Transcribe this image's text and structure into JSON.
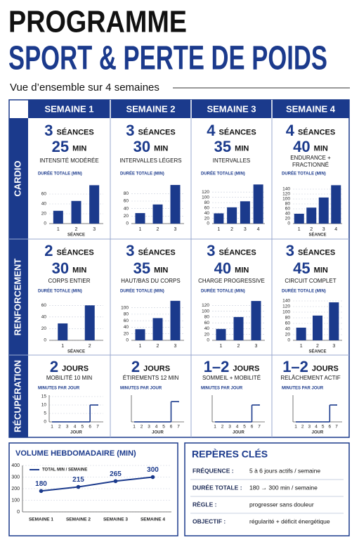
{
  "header": {
    "title": "PROGRAMME",
    "subtitle": "SPORT & PERTE DE POIDS",
    "tagline": "Vue d’ensemble sur 4 semaines"
  },
  "table": {
    "weeks": [
      "SEMAINE 1",
      "SEMAINE 2",
      "SEMAINE 3",
      "SEMAINE 4"
    ],
    "rows": [
      {
        "label": "CARDIO",
        "cells": [
          {
            "count": 3,
            "count_unit": "SÉANCES",
            "duration": 25,
            "duration_unit": "MIN",
            "note": "INTENSITÉ MODÉRÉE",
            "chart": {
              "type": "bar",
              "title": "DURÉE TOTALE (MIN)",
              "categories": [
                "1",
                "2",
                "3"
              ],
              "x_label": "SÉANCE",
              "values": [
                26,
                46,
                78
              ],
              "ylim": [
                0,
                80
              ],
              "yticks": [
                0,
                20,
                40,
                60
              ]
            }
          },
          {
            "count": 3,
            "count_unit": "SÉANCES",
            "duration": 30,
            "duration_unit": "MIN",
            "note": "INTERVALLES LÉGERS",
            "chart": {
              "type": "bar",
              "title": "DURÉE TOTALE (MIN)",
              "categories": [
                "1",
                "2",
                "3"
              ],
              "values": [
                28,
                51,
                103
              ],
              "ylim": [
                0,
                105
              ],
              "yticks": [
                0,
                20,
                40,
                60,
                80
              ]
            }
          },
          {
            "count": 4,
            "count_unit": "SÉANCES",
            "duration": 35,
            "duration_unit": "MIN",
            "note": "INTERVALLES",
            "chart": {
              "type": "bar",
              "title": "DURÉE TOTALE (MIN)",
              "categories": [
                "1",
                "2",
                "3",
                "4"
              ],
              "values": [
                39,
                62,
                85,
                149
              ],
              "ylim": [
                0,
                150
              ],
              "yticks": [
                0,
                20,
                40,
                60,
                80,
                100,
                120
              ]
            }
          },
          {
            "count": 4,
            "count_unit": "SÉANCES",
            "duration": 40,
            "duration_unit": "MIN",
            "note": [
              "ENDURANCE +",
              "FRACTIONNÉ"
            ],
            "chart": {
              "type": "bar",
              "title": "DURÉE TOTALE (MIN)",
              "categories": [
                "1",
                "2",
                "3",
                "4"
              ],
              "x_label": "SÉANCE",
              "values": [
                40,
                65,
                106,
                156
              ],
              "ylim": [
                0,
                160
              ],
              "yticks": [
                0,
                20,
                40,
                60,
                80,
                100,
                120,
                140
              ]
            }
          }
        ]
      },
      {
        "label": "RENFORCEMENT",
        "cells": [
          {
            "count": 2,
            "count_unit": "SÉANCES",
            "duration": 30,
            "duration_unit": "MIN",
            "note": "CORPS ENTIER",
            "chart": {
              "type": "bar",
              "title": "DURÉE TOTALE (MIN)",
              "categories": [
                "1",
                "2"
              ],
              "x_label": "SÉANCE",
              "values": [
                29,
                60
              ],
              "ylim": [
                0,
                70
              ],
              "yticks": [
                0,
                20,
                40,
                60
              ]
            }
          },
          {
            "count": 3,
            "count_unit": "SÉANCES",
            "duration": 35,
            "duration_unit": "MIN",
            "note": "HAUT/BAS DU CORPS",
            "chart": {
              "type": "bar",
              "title": "DURÉE TOTALE (MIN)",
              "categories": [
                "1",
                "2",
                "3"
              ],
              "values": [
                34,
                68,
                121
              ],
              "ylim": [
                0,
                125
              ],
              "yticks": [
                0,
                20,
                40,
                60,
                80,
                100
              ]
            }
          },
          {
            "count": 3,
            "count_unit": "SÉANCES",
            "duration": 40,
            "duration_unit": "MIN",
            "note": "CHARGE PROGRESSIVE",
            "chart": {
              "type": "bar",
              "title": "DURÉE TOTALE (MIN)",
              "categories": [
                "1",
                "2",
                "3"
              ],
              "values": [
                39,
                80,
                135
              ],
              "ylim": [
                0,
                140
              ],
              "yticks": [
                0,
                20,
                40,
                60,
                80,
                100,
                120
              ]
            }
          },
          {
            "count": 3,
            "count_unit": "SÉANCES",
            "duration": 45,
            "duration_unit": "MIN",
            "note": "CIRCUIT COMPLET",
            "chart": {
              "type": "bar",
              "title": "DURÉE TOTALE (MIN)",
              "categories": [
                "1",
                "2",
                "3"
              ],
              "x_label": "SÉANCE",
              "values": [
                45,
                88,
                135
              ],
              "ylim": [
                0,
                145
              ],
              "yticks": [
                0,
                20,
                40,
                60,
                80,
                100,
                120,
                140
              ]
            }
          }
        ]
      },
      {
        "label": "RÉCUPÉRATION",
        "cells": [
          {
            "count": 2,
            "count_unit": "JOURS",
            "note": "MOBILITÉ 10 MIN",
            "chart": {
              "type": "step",
              "title": "MINUTES PAR JOUR",
              "x": [
                1,
                2,
                3,
                4,
                5,
                6,
                7
              ],
              "x_label": "JOUR",
              "values": [
                0,
                0,
                0,
                0,
                0,
                10,
                10
              ],
              "ylim": [
                0,
                15
              ],
              "yticks": [
                0,
                5,
                10,
                15
              ]
            }
          },
          {
            "count": 2,
            "count_unit": "JOURS",
            "note": "ÉTIREMENTS 12 MIN",
            "chart": {
              "type": "step",
              "title": "MINUTES PAR JOUR",
              "x": [
                1,
                2,
                3,
                4,
                5,
                6,
                7
              ],
              "x_label": "JOUR",
              "values": [
                0,
                0,
                0,
                0,
                0,
                12,
                12
              ],
              "ylim": [
                0,
                15
              ]
            }
          },
          {
            "count": "1–2",
            "count_unit": "JOURS",
            "note": "SOMMEIL + MOBILITÉ",
            "chart": {
              "type": "step",
              "title": "MINUTES PAR JOUR",
              "x": [
                1,
                2,
                3,
                4,
                5,
                6,
                7
              ],
              "x_label": "JOUR",
              "values": [
                0,
                0,
                0,
                0,
                0,
                10,
                10
              ],
              "ylim": [
                0,
                15
              ]
            }
          },
          {
            "count": "1–2",
            "count_unit": "JOURS",
            "note": "RELÂCHEMENT ACTIF",
            "chart": {
              "type": "step",
              "title": "MINUTES PAR JOUR",
              "x": [
                1,
                2,
                3,
                4,
                5,
                6,
                7
              ],
              "x_label": "JOUR",
              "values": [
                0,
                0,
                0,
                0,
                0,
                10,
                10
              ],
              "ylim": [
                0,
                15
              ]
            }
          }
        ]
      }
    ]
  },
  "volume": {
    "type": "line",
    "title": "VOLUME HEBDOMADAIRE (MIN)",
    "categories": [
      "SEMAINE 1",
      "SEMAINE 2",
      "SEMAINE 3",
      "SEMAINE 4"
    ],
    "series": [
      {
        "name": "TOTAL MIN / SEMAINE",
        "color": "#1b3a8c",
        "values": [
          180,
          215,
          265,
          300
        ]
      }
    ],
    "ylim": [
      0,
      400
    ],
    "yticks": [
      0,
      100,
      200,
      300,
      400
    ],
    "grid": true
  },
  "key_points": {
    "title": "REPÈRES CLÉS",
    "rows": [
      {
        "label": "FRÉQUENCE :",
        "value": "5 à 6 jours actifs / semaine"
      },
      {
        "label": "DURÉE TOTALE :",
        "value": "180 → 300 min / semaine"
      },
      {
        "label": "RÈGLE :",
        "value": "progresser sans douleur"
      },
      {
        "label": "OBJECTIF :",
        "value": "régularité + déficit énergétique"
      }
    ]
  }
}
